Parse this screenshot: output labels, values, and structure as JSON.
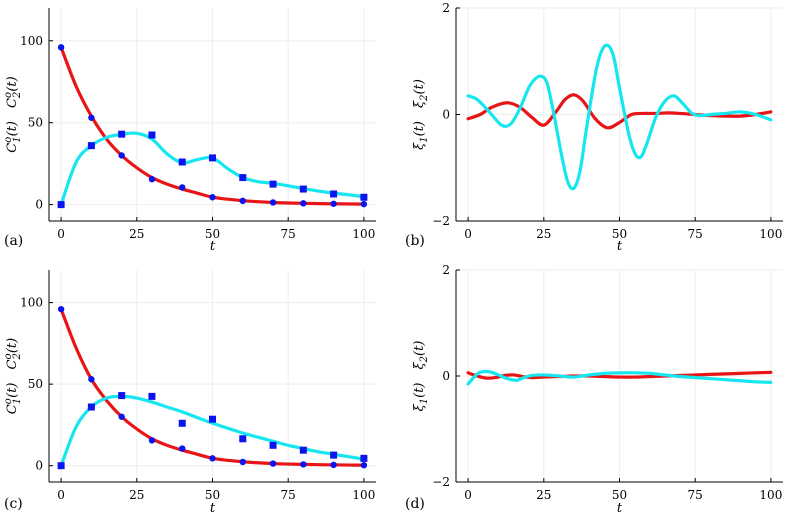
{
  "colors": {
    "c1": "#e81416",
    "c2": "#16e6ef",
    "markers": "#0a14ee",
    "grid": "#eeeeee"
  },
  "chart_data": [
    {
      "panel_label": "(a)",
      "type": "line",
      "grid": true,
      "xlabel": "t",
      "ylabel_1": "C",
      "ylabel_1_sup": "o",
      "ylabel_1_sub": "1",
      "ylabel_1_arg": "(t)",
      "ylabel_2": "C",
      "ylabel_2_sup": "o",
      "ylabel_2_sub": "2",
      "ylabel_2_arg": "(t)",
      "xlim": [
        -4,
        104
      ],
      "ylim": [
        -10,
        120
      ],
      "xticks": [
        "0",
        "25",
        "50",
        "75",
        "100"
      ],
      "xtick_values": [
        0,
        25,
        50,
        75,
        100
      ],
      "yticks": [
        "0",
        "50",
        "100"
      ],
      "ytick_values": [
        0,
        50,
        100
      ],
      "observed_C1": {
        "marker": "circle",
        "x": [
          0,
          10,
          20,
          30,
          40,
          50,
          60,
          70,
          80,
          90,
          100
        ],
        "y": [
          96,
          53,
          30,
          15.5,
          10.5,
          4.5,
          2.3,
          1.3,
          0.8,
          0.5,
          0.3
        ]
      },
      "observed_C2": {
        "marker": "square",
        "x": [
          0,
          10,
          20,
          30,
          40,
          50,
          60,
          70,
          80,
          90,
          100
        ],
        "y": [
          0,
          36,
          43,
          42.5,
          26,
          28.5,
          16.5,
          12.5,
          9.5,
          6.5,
          4.5
        ]
      },
      "series": [
        {
          "x": [
            0,
            5,
            10,
            15,
            20,
            25,
            30,
            35,
            40,
            45,
            50,
            55,
            60,
            65,
            70,
            75,
            80,
            85,
            90,
            95,
            100
          ],
          "values": [
            96,
            72,
            54,
            40,
            30,
            22.5,
            16.5,
            12.5,
            9.5,
            7,
            4.5,
            3.3,
            2.4,
            1.8,
            1.3,
            1,
            0.8,
            0.6,
            0.5,
            0.4,
            0.3
          ],
          "color_key": "c1"
        },
        {
          "x": [
            0,
            5,
            10,
            15,
            20,
            25,
            30,
            35,
            40,
            45,
            50,
            55,
            60,
            65,
            70,
            75,
            80,
            85,
            90,
            95,
            100
          ],
          "values": [
            0,
            26,
            36,
            41,
            43,
            43.5,
            40,
            31,
            25.5,
            27.5,
            28.5,
            22,
            16.5,
            14,
            13,
            11.5,
            9.8,
            8.3,
            7,
            6,
            4.8
          ],
          "color_key": "c2"
        }
      ]
    },
    {
      "panel_label": "(b)",
      "type": "line",
      "grid": true,
      "xlabel": "t",
      "ylabel_1": "ξ",
      "ylabel_1_sub": "1",
      "ylabel_1_arg": "(t)",
      "ylabel_2": "ξ",
      "ylabel_2_sub": "2",
      "ylabel_2_arg": "(t)",
      "xlim": [
        -4,
        104
      ],
      "ylim": [
        -2,
        2
      ],
      "xticks": [
        "0",
        "25",
        "50",
        "75",
        "100"
      ],
      "xtick_values": [
        0,
        25,
        50,
        75,
        100
      ],
      "yticks": [
        "−2",
        "0",
        "2"
      ],
      "ytick_values": [
        -2,
        0,
        2
      ],
      "series": [
        {
          "x": [
            0,
            4,
            8,
            13,
            17,
            21,
            25,
            29,
            32,
            35,
            38,
            42,
            46,
            50,
            54,
            58,
            62,
            66,
            70,
            75,
            80,
            85,
            90,
            95,
            100
          ],
          "values": [
            -0.08,
            0.0,
            0.14,
            0.22,
            0.14,
            -0.05,
            -0.2,
            0.05,
            0.28,
            0.37,
            0.25,
            -0.08,
            -0.25,
            -0.15,
            0.0,
            0.02,
            0.02,
            0.03,
            0.02,
            0.0,
            -0.02,
            -0.03,
            -0.03,
            0.0,
            0.05
          ],
          "color_key": "c1"
        },
        {
          "x": [
            0,
            3,
            7,
            11,
            14,
            17,
            20,
            22,
            24,
            26,
            28,
            31,
            33,
            35,
            37,
            39,
            42,
            44,
            46,
            48,
            50,
            53,
            55,
            57,
            59,
            62,
            65,
            68,
            71,
            74,
            77,
            80,
            85,
            90,
            95,
            100
          ],
          "values": [
            0.35,
            0.28,
            0.05,
            -0.2,
            -0.18,
            0.1,
            0.5,
            0.66,
            0.72,
            0.6,
            0.1,
            -0.8,
            -1.28,
            -1.38,
            -1.05,
            -0.3,
            0.75,
            1.18,
            1.3,
            1.1,
            0.5,
            -0.35,
            -0.72,
            -0.8,
            -0.55,
            -0.05,
            0.25,
            0.35,
            0.2,
            0.02,
            -0.02,
            0.0,
            0.02,
            0.05,
            0.0,
            -0.1
          ],
          "color_key": "c2"
        }
      ]
    },
    {
      "panel_label": "(c)",
      "type": "line",
      "grid": true,
      "xlabel": "t",
      "ylabel_1": "C",
      "ylabel_1_sup": "o",
      "ylabel_1_sub": "1",
      "ylabel_1_arg": "(t)",
      "ylabel_2": "C",
      "ylabel_2_sup": "o",
      "ylabel_2_sub": "2",
      "ylabel_2_arg": "(t)",
      "xlim": [
        -4,
        104
      ],
      "ylim": [
        -10,
        120
      ],
      "xticks": [
        "0",
        "25",
        "50",
        "75",
        "100"
      ],
      "xtick_values": [
        0,
        25,
        50,
        75,
        100
      ],
      "yticks": [
        "0",
        "50",
        "100"
      ],
      "ytick_values": [
        0,
        50,
        100
      ],
      "observed_C1": {
        "marker": "circle",
        "x": [
          0,
          10,
          20,
          30,
          40,
          50,
          60,
          70,
          80,
          90,
          100
        ],
        "y": [
          96,
          53,
          30,
          15.5,
          10.5,
          4.5,
          2.3,
          1.3,
          0.8,
          0.5,
          0.3
        ]
      },
      "observed_C2": {
        "marker": "square",
        "x": [
          0,
          10,
          20,
          30,
          40,
          50,
          60,
          70,
          80,
          90,
          100
        ],
        "y": [
          0,
          36,
          43,
          42.5,
          26,
          28.5,
          16.5,
          12.5,
          9.5,
          6.5,
          4.5
        ]
      },
      "series": [
        {
          "x": [
            0,
            5,
            10,
            15,
            20,
            25,
            30,
            35,
            40,
            45,
            50,
            55,
            60,
            65,
            70,
            75,
            80,
            85,
            90,
            95,
            100
          ],
          "values": [
            96,
            72,
            53,
            40,
            30,
            22.5,
            16.5,
            12.5,
            9.5,
            7,
            4.5,
            3.3,
            2.4,
            1.8,
            1.3,
            1,
            0.8,
            0.6,
            0.5,
            0.4,
            0.3
          ],
          "color_key": "c1"
        },
        {
          "x": [
            0,
            5,
            10,
            15,
            20,
            25,
            30,
            35,
            40,
            45,
            50,
            55,
            60,
            65,
            70,
            75,
            80,
            85,
            90,
            95,
            100
          ],
          "values": [
            0,
            24,
            36,
            41.5,
            42.5,
            41.5,
            39,
            36,
            33,
            29.5,
            26,
            23,
            20,
            17.5,
            15,
            12.5,
            10.5,
            8.5,
            7,
            5.5,
            4
          ],
          "color_key": "c2"
        }
      ]
    },
    {
      "panel_label": "(d)",
      "type": "line",
      "grid": true,
      "xlabel": "t",
      "ylabel_1": "ξ",
      "ylabel_1_sub": "1",
      "ylabel_1_arg": "(t)",
      "ylabel_2": "ξ",
      "ylabel_2_sub": "2",
      "ylabel_2_arg": "(t)",
      "xlim": [
        -4,
        104
      ],
      "ylim": [
        -2,
        2
      ],
      "xticks": [
        "0",
        "25",
        "50",
        "75",
        "100"
      ],
      "xtick_values": [
        0,
        25,
        50,
        75,
        100
      ],
      "yticks": [
        "−2",
        "0",
        "2"
      ],
      "ytick_values": [
        -2,
        0,
        2
      ],
      "series": [
        {
          "x": [
            0,
            3,
            6,
            9,
            12,
            15,
            18,
            21,
            25,
            30,
            35,
            40,
            45,
            50,
            55,
            60,
            65,
            70,
            75,
            80,
            85,
            90,
            95,
            100
          ],
          "values": [
            0.06,
            0.0,
            -0.04,
            -0.03,
            0.01,
            0.02,
            -0.01,
            -0.03,
            -0.02,
            -0.01,
            0.0,
            0.0,
            -0.01,
            -0.02,
            -0.02,
            -0.01,
            0.0,
            0.01,
            0.02,
            0.03,
            0.04,
            0.05,
            0.06,
            0.07
          ],
          "color_key": "c1"
        },
        {
          "x": [
            0,
            2,
            4,
            7,
            10,
            13,
            16,
            18,
            21,
            25,
            30,
            35,
            40,
            45,
            50,
            55,
            60,
            65,
            70,
            75,
            80,
            85,
            90,
            95,
            100
          ],
          "values": [
            -0.15,
            -0.02,
            0.07,
            0.08,
            0.02,
            -0.05,
            -0.08,
            -0.04,
            0.01,
            0.02,
            0.0,
            -0.02,
            0.02,
            0.05,
            0.06,
            0.06,
            0.05,
            0.02,
            -0.01,
            -0.03,
            -0.05,
            -0.07,
            -0.09,
            -0.11,
            -0.12
          ],
          "color_key": "c2"
        }
      ]
    }
  ]
}
